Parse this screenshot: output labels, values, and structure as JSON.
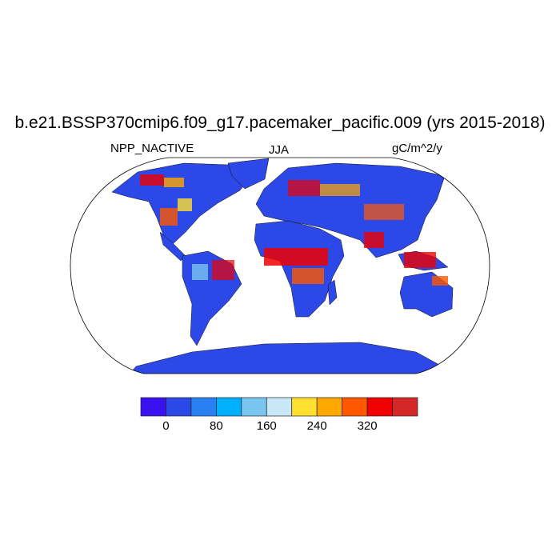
{
  "plot": {
    "title": "b.e21.BSSP370cmip6.f09_g17.pacemaker_pacific.009 (yrs 2015-2018)",
    "left_string": "NPP_NACTIVE",
    "center_string": "JJA",
    "right_string": "gC/m^2/y",
    "projection": "Robinson",
    "land_base_color": "#2c48e6"
  },
  "colorbar": {
    "levels": [
      0,
      40,
      80,
      120,
      160,
      200,
      240,
      280,
      320,
      360
    ],
    "tick_labels": [
      "0",
      "80",
      "160",
      "240",
      "320"
    ],
    "colors": [
      "#3a12f2",
      "#2c48e6",
      "#2a80f0",
      "#00b0ff",
      "#78c6f0",
      "#c8e8f8",
      "#ffe030",
      "#ffa800",
      "#ff5800",
      "#f00000",
      "#d42828"
    ]
  }
}
